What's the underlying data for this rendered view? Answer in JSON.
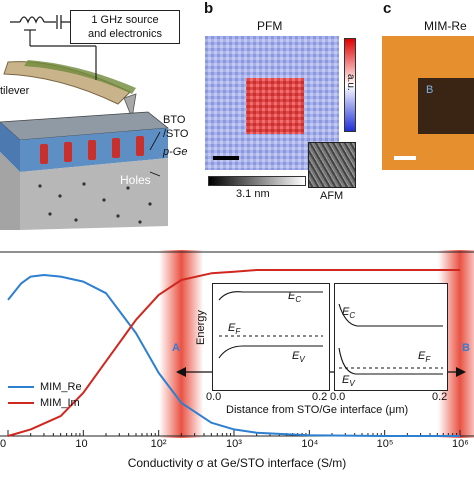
{
  "panel_a": {
    "source_box_line1": "1 GHz source",
    "source_box_line2": "and electronics",
    "cantilever_label": "tilever",
    "bto_label": "BTO",
    "sto_label": "/STO",
    "pge_label": "p-Ge",
    "holes_label": "Holes"
  },
  "panel_b": {
    "letter": "b",
    "title": "PFM",
    "colorbar_unit": "a.u.",
    "height_label": "3.1 nm",
    "inset_label": "AFM"
  },
  "panel_c": {
    "letter": "c",
    "title": "MIM-Re",
    "inset_letter": "B"
  },
  "chart_data": {
    "type": "line",
    "x_scale": "log",
    "xlabel": "Conductivity σ at Ge/STO interface (S/m)",
    "xlim": [
      1,
      1000000
    ],
    "x_ticks": [
      "0",
      "10",
      "10²",
      "10³",
      "10⁴",
      "10⁵",
      "10⁶"
    ],
    "highlight_bands_x": [
      200,
      1000000
    ],
    "legend": [
      "MIM_Re",
      "MIM_Im"
    ],
    "series": [
      {
        "name": "MIM_Re",
        "color": "#2d7fcf",
        "x": [
          1,
          1.5,
          2,
          3,
          5,
          10,
          20,
          50,
          100,
          200,
          500,
          1000,
          2000,
          5000,
          10000,
          100000,
          1000000
        ],
        "y": [
          0.82,
          0.92,
          0.96,
          0.97,
          0.96,
          0.93,
          0.86,
          0.62,
          0.38,
          0.2,
          0.08,
          0.04,
          0.02,
          0.01,
          0.005,
          0.0,
          0.0
        ]
      },
      {
        "name": "MIM_Im",
        "color": "#d0271f",
        "x": [
          1,
          2,
          5,
          10,
          20,
          50,
          100,
          200,
          500,
          1000,
          2000,
          10000,
          100000,
          1000000
        ],
        "y": [
          0.0,
          0.04,
          0.12,
          0.26,
          0.45,
          0.7,
          0.85,
          0.94,
          0.98,
          0.99,
          1.0,
          1.0,
          1.0,
          1.0
        ]
      }
    ]
  },
  "inset_left": {
    "ylabel": "Energy",
    "ec_label": "EC",
    "ef_label": "EF",
    "ev_label": "EV",
    "x_tick_0": "0.0",
    "x_tick_1": "0.2"
  },
  "inset_right": {
    "ec_label": "EC",
    "ef_label": "EF",
    "ev_label": "EV",
    "x_tick_0": "0.0",
    "x_tick_1": "0.2"
  },
  "inset_xlabel": "Distance from STO/Ge interface (μm)",
  "arrow_left_label": "A",
  "arrow_right_label": "B"
}
